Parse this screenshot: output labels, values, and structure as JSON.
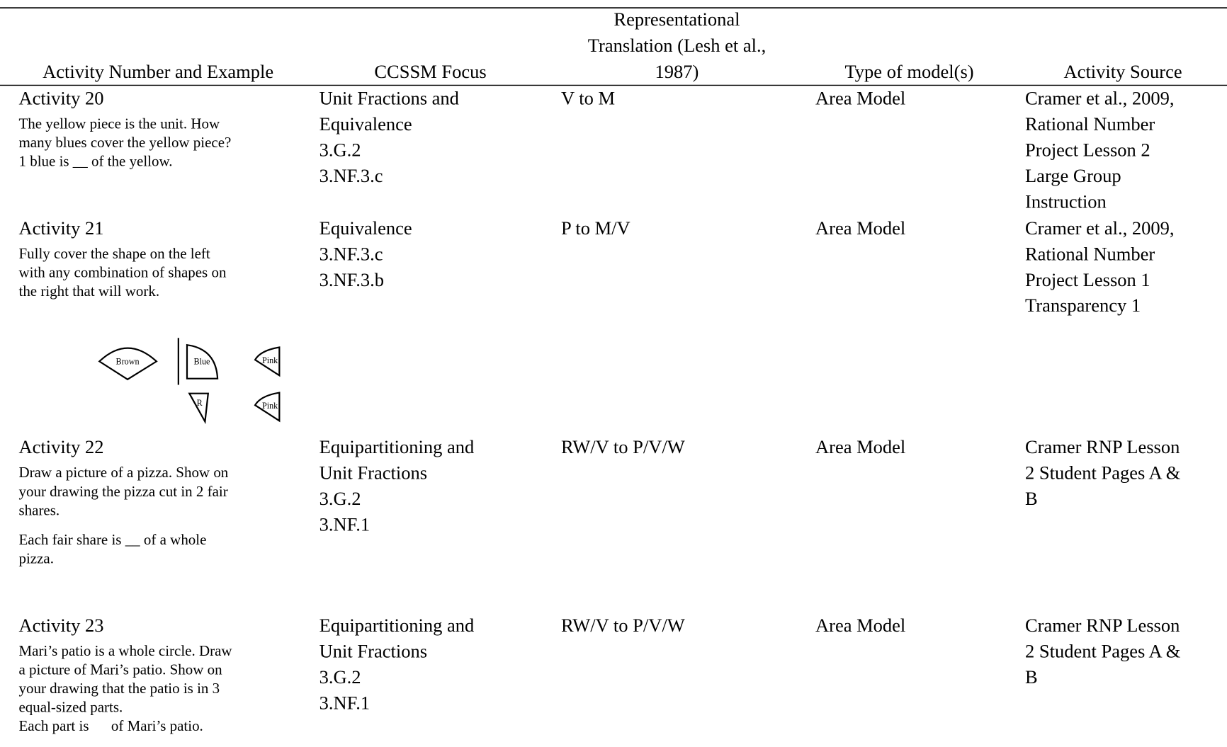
{
  "table": {
    "headers": [
      [
        "Activity Number and Example"
      ],
      [
        "CCSSM Focus"
      ],
      [
        "Representational",
        "Translation (Lesh et al.,",
        "1987)"
      ],
      [
        "Type of model(s)"
      ],
      [
        "Activity Source"
      ]
    ],
    "rows": [
      {
        "activity": "Activity 20",
        "example": [
          [
            "The yellow piece is the unit. How",
            "many blues cover the yellow piece?",
            "1 blue is __ of the yellow."
          ]
        ],
        "focus": [
          "Unit Fractions and",
          "Equivalence",
          "3.G.2",
          "3.NF.3.c"
        ],
        "translation": "V to M",
        "model": "Area Model",
        "source": [
          "Cramer et al., 2009,",
          "Rational Number",
          "Project Lesson 2",
          "Large Group",
          "Instruction"
        ]
      },
      {
        "activity": "Activity 21",
        "example": [
          [
            "Fully cover the shape on the left",
            "with any combination of shapes on",
            "the right that will work."
          ]
        ],
        "figure": [
          "Brown",
          "Blue",
          "Pink",
          "R",
          "Pink"
        ],
        "focus": [
          "Equivalence",
          "3.NF.3.c",
          "3.NF.3.b"
        ],
        "translation": "P to M/V",
        "model": "Area Model",
        "source": [
          "Cramer et al., 2009,",
          "Rational Number",
          "Project Lesson 1",
          "Transparency 1"
        ]
      },
      {
        "activity": "Activity 22",
        "example": [
          [
            "Draw a picture of a pizza. Show on",
            "your drawing the pizza cut in 2 fair",
            "shares."
          ],
          [
            "Each fair share is __ of a whole",
            "pizza."
          ]
        ],
        "focus": [
          "Equipartitioning and",
          "Unit Fractions",
          "3.G.2",
          "3.NF.1"
        ],
        "translation": "RW/V to P/V/W",
        "model": "Area Model",
        "source": [
          "Cramer RNP Lesson",
          "2 Student Pages A &",
          "B"
        ]
      },
      {
        "activity": "Activity 23",
        "example": [
          [
            "Mari’s patio is a whole circle. Draw",
            "a picture of Mari’s patio. Show on",
            "your drawing that the patio is in 3",
            "equal-sized parts.",
            "Each part is      of Mari’s patio."
          ]
        ],
        "focus": [
          "Equipartitioning and",
          "Unit Fractions",
          "3.G.2",
          "3.NF.1"
        ],
        "translation": "RW/V to P/V/W",
        "model": "Area Model",
        "source": [
          "Cramer RNP Lesson",
          "2 Student Pages A &",
          "B"
        ]
      }
    ]
  }
}
